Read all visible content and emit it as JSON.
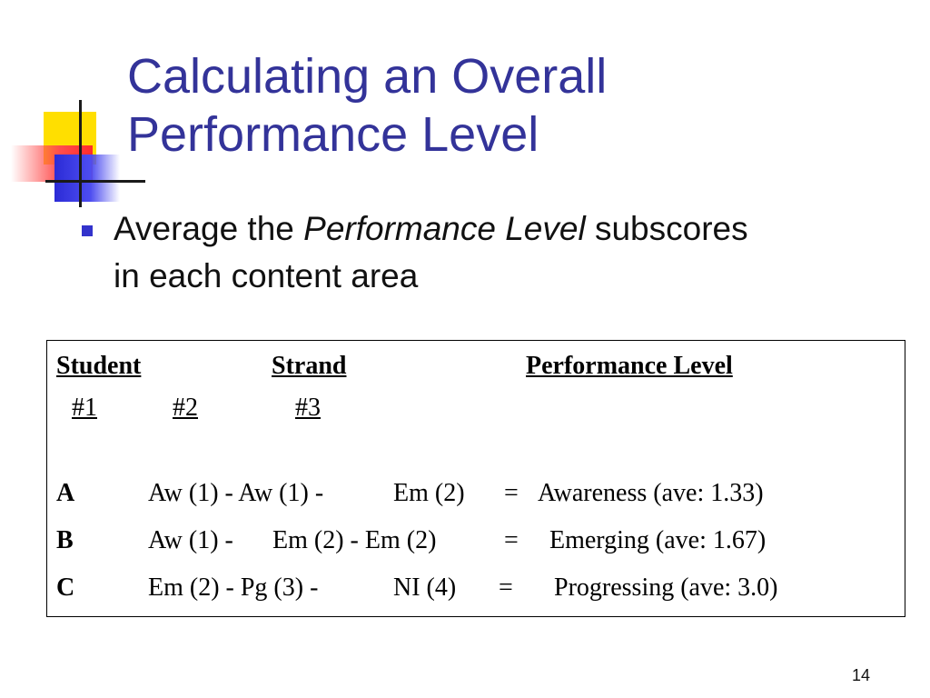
{
  "slide": {
    "title_line1": "Calculating an Overall",
    "title_line2": "Performance Level",
    "bullet": {
      "prefix": "Average the ",
      "emphasis": "Performance Level",
      "suffix": " subscores",
      "line2": "in each content area"
    },
    "page_number": "14"
  },
  "table": {
    "headers": {
      "student": "Student",
      "strand": "Strand",
      "performance_level": "Performance Level"
    },
    "strand_numbers": [
      "#1",
      "#2",
      "#3"
    ],
    "rows": [
      {
        "student": "A",
        "s1": "Aw (1) - Aw (1) -",
        "s2": "Em (2)",
        "eq": "=",
        "result": "Awareness  (ave: 1.33)"
      },
      {
        "student": "B",
        "s1": "Aw (1) -",
        "s2": "Em (2) - Em (2)",
        "eq": "=",
        "result": "Emerging  (ave: 1.67)"
      },
      {
        "student": "C",
        "s1": "Em (2) - Pg (3) -",
        "s2": "NI (4)",
        "eq": "=",
        "result": "Progressing  (ave: 3.0)"
      }
    ]
  },
  "colors": {
    "title": "#333399",
    "bullet": "#3333cc"
  }
}
